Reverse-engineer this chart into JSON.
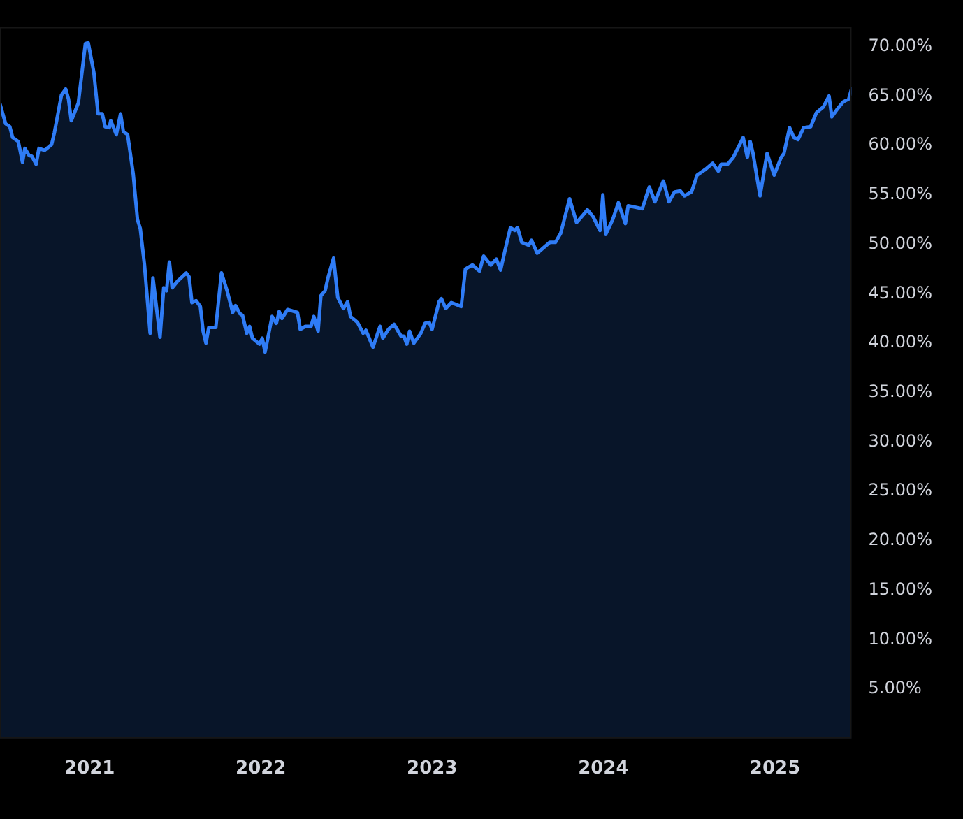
{
  "chart_data": {
    "type": "area",
    "x": [
      "2020-06-24",
      "2020-07-06",
      "2020-07-15",
      "2020-07-21",
      "2020-08-02",
      "2020-08-11",
      "2020-08-16",
      "2020-08-25",
      "2020-08-31",
      "2020-09-09",
      "2020-09-15",
      "2020-09-27",
      "2020-10-12",
      "2020-10-18",
      "2020-11-02",
      "2020-11-11",
      "2020-11-17",
      "2020-11-23",
      "2020-12-08",
      "2020-12-23",
      "2020-12-29",
      "2021-01-10",
      "2021-01-19",
      "2021-01-28",
      "2021-02-03",
      "2021-02-12",
      "2021-02-15",
      "2021-02-27",
      "2021-03-08",
      "2021-03-14",
      "2021-03-23",
      "2021-04-04",
      "2021-04-13",
      "2021-04-19",
      "2021-04-28",
      "2021-05-10",
      "2021-05-16",
      "2021-05-31",
      "2021-06-08",
      "2021-06-14",
      "2021-06-20",
      "2021-06-26",
      "2021-07-08",
      "2021-07-26",
      "2021-08-01",
      "2021-08-07",
      "2021-08-16",
      "2021-08-25",
      "2021-08-31",
      "2021-09-06",
      "2021-09-12",
      "2021-09-27",
      "2021-10-09",
      "2021-10-21",
      "2021-11-02",
      "2021-11-08",
      "2021-11-17",
      "2021-11-23",
      "2021-12-02",
      "2021-12-08",
      "2021-12-14",
      "2021-12-29",
      "2022-01-04",
      "2022-01-10",
      "2022-01-25",
      "2022-02-03",
      "2022-02-09",
      "2022-02-15",
      "2022-02-27",
      "2022-03-20",
      "2022-03-26",
      "2022-04-06",
      "2022-04-18",
      "2022-04-24",
      "2022-05-03",
      "2022-05-09",
      "2022-05-18",
      "2022-05-24",
      "2022-06-05",
      "2022-06-14",
      "2022-06-26",
      "2022-07-05",
      "2022-07-11",
      "2022-07-26",
      "2022-08-07",
      "2022-08-13",
      "2022-08-28",
      "2022-09-12",
      "2022-09-18",
      "2022-09-30",
      "2022-10-12",
      "2022-10-27",
      "2022-11-02",
      "2022-11-08",
      "2022-11-14",
      "2022-11-23",
      "2022-12-08",
      "2022-12-17",
      "2022-12-26",
      "2023-01-01",
      "2023-01-16",
      "2023-01-21",
      "2023-01-30",
      "2023-02-11",
      "2023-03-04",
      "2023-03-13",
      "2023-03-28",
      "2023-04-12",
      "2023-04-21",
      "2023-05-06",
      "2023-05-18",
      "2023-05-27",
      "2023-06-05",
      "2023-06-17",
      "2023-06-26",
      "2023-07-02",
      "2023-07-11",
      "2023-07-26",
      "2023-08-01",
      "2023-08-13",
      "2023-09-09",
      "2023-09-21",
      "2023-10-02",
      "2023-10-21",
      "2023-11-05",
      "2023-11-16",
      "2023-11-28",
      "2023-12-10",
      "2023-12-25",
      "2023-12-31",
      "2024-01-06",
      "2024-01-21",
      "2024-02-02",
      "2024-02-17",
      "2024-02-23",
      "2024-03-24",
      "2024-04-08",
      "2024-04-20",
      "2024-05-08",
      "2024-05-20",
      "2024-06-01",
      "2024-06-13",
      "2024-06-22",
      "2024-07-07",
      "2024-07-19",
      "2024-08-06",
      "2024-08-21",
      "2024-09-02",
      "2024-09-08",
      "2024-09-22",
      "2024-10-04",
      "2024-10-25",
      "2024-11-03",
      "2024-11-09",
      "2024-11-15",
      "2024-11-30",
      "2024-12-15",
      "2024-12-30",
      "2025-01-14",
      "2025-01-20",
      "2025-02-01",
      "2025-02-10",
      "2025-02-19",
      "2025-03-03",
      "2025-03-18",
      "2025-03-30",
      "2025-04-14",
      "2025-04-26",
      "2025-05-02",
      "2025-05-14",
      "2025-05-26",
      "2025-06-07",
      "2025-06-13"
    ],
    "series": [
      {
        "color": "#2f7cf6",
        "values": [
          64.2,
          62.2,
          61.9,
          60.8,
          60.4,
          58.3,
          59.7,
          59.0,
          58.9,
          58.1,
          59.7,
          59.5,
          60.1,
          61.3,
          65.1,
          65.7,
          64.7,
          62.5,
          64.3,
          70.3,
          70.4,
          67.4,
          63.2,
          63.2,
          61.9,
          61.8,
          62.5,
          61.1,
          63.2,
          61.4,
          61.1,
          57.1,
          52.5,
          51.6,
          47.9,
          41.0,
          46.6,
          40.6,
          45.6,
          45.3,
          48.2,
          45.6,
          46.3,
          47.1,
          46.7,
          44.1,
          44.3,
          43.7,
          41.2,
          40.0,
          41.6,
          41.6,
          47.1,
          45.3,
          43.1,
          43.8,
          43.0,
          42.8,
          41.0,
          41.7,
          40.5,
          39.9,
          40.5,
          39.1,
          42.7,
          42.0,
          43.2,
          42.5,
          43.4,
          43.1,
          41.4,
          41.7,
          41.7,
          42.7,
          41.2,
          44.8,
          45.3,
          46.6,
          48.6,
          44.6,
          43.5,
          44.2,
          42.7,
          42.1,
          41.0,
          41.3,
          39.6,
          41.7,
          40.5,
          41.4,
          41.9,
          40.7,
          40.7,
          39.9,
          41.2,
          40.0,
          41.0,
          42.0,
          42.1,
          41.4,
          44.2,
          44.5,
          43.5,
          44.1,
          43.7,
          47.5,
          47.9,
          47.3,
          48.8,
          47.9,
          48.5,
          47.4,
          49.3,
          51.7,
          51.4,
          51.7,
          50.2,
          49.9,
          50.4,
          49.1,
          50.2,
          50.2,
          51.1,
          54.6,
          52.2,
          52.8,
          53.5,
          52.8,
          51.4,
          55.0,
          51.0,
          52.5,
          54.2,
          52.1,
          53.9,
          53.6,
          55.8,
          54.3,
          56.4,
          54.3,
          55.3,
          55.4,
          54.9,
          55.3,
          57.0,
          57.6,
          58.2,
          57.4,
          58.1,
          58.1,
          58.8,
          60.8,
          58.8,
          60.4,
          59.2,
          54.9,
          59.2,
          57.0,
          58.8,
          59.2,
          61.8,
          60.8,
          60.6,
          61.8,
          61.9,
          63.3,
          63.9,
          65.0,
          62.9,
          63.7,
          64.4,
          64.7,
          65.7
        ]
      }
    ],
    "xticks": [
      {
        "value": "2021-01-01",
        "label": "2021"
      },
      {
        "value": "2022-01-01",
        "label": "2022"
      },
      {
        "value": "2023-01-01",
        "label": "2023"
      },
      {
        "value": "2024-01-01",
        "label": "2024"
      },
      {
        "value": "2025-01-01",
        "label": "2025"
      }
    ],
    "xlim": [
      "2020-06-24",
      "2025-06-13"
    ],
    "ylim": [
      0,
      72
    ],
    "yticks": [
      {
        "value": 5,
        "label": "5.00%"
      },
      {
        "value": 10,
        "label": "10.00%"
      },
      {
        "value": 15,
        "label": "15.00%"
      },
      {
        "value": 20,
        "label": "20.00%"
      },
      {
        "value": 25,
        "label": "25.00%"
      },
      {
        "value": 30,
        "label": "30.00%"
      },
      {
        "value": 35,
        "label": "35.00%"
      },
      {
        "value": 40,
        "label": "40.00%"
      },
      {
        "value": 45,
        "label": "45.00%"
      },
      {
        "value": 50,
        "label": "50.00%"
      },
      {
        "value": 55,
        "label": "55.00%"
      },
      {
        "value": 60,
        "label": "60.00%"
      },
      {
        "value": 65,
        "label": "65.00%"
      },
      {
        "value": 70,
        "label": "70.00%"
      }
    ],
    "grid": false,
    "legend": false,
    "marker": "none",
    "line_style": "solid"
  }
}
